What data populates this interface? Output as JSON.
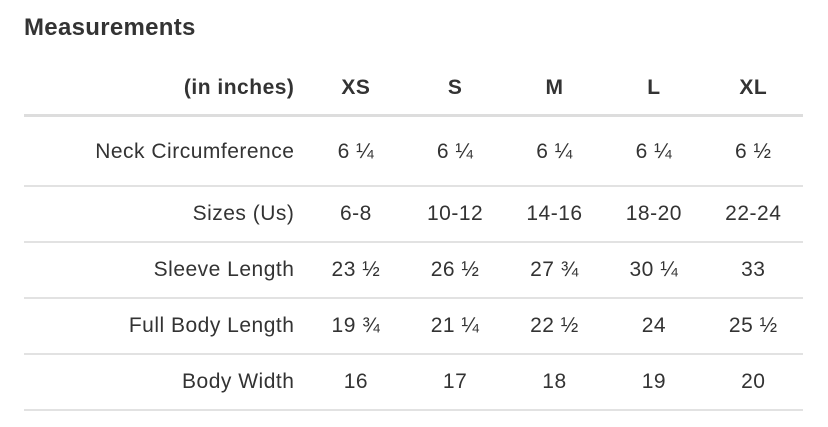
{
  "title": "Measurements",
  "table": {
    "unit_header": "(in inches)",
    "sizes": [
      "XS",
      "S",
      "M",
      "L",
      "XL"
    ],
    "rows": [
      {
        "label": "Neck Circumference",
        "values": [
          "6 ¼",
          "6 ¼",
          "6 ¼",
          "6 ¼",
          "6 ½"
        ]
      },
      {
        "label": "Sizes (Us)",
        "values": [
          "6-8",
          "10-12",
          "14-16",
          "18-20",
          "22-24"
        ]
      },
      {
        "label": "Sleeve Length",
        "values": [
          "23 ½",
          "26 ½",
          "27 ¾",
          "30 ¼",
          "33"
        ]
      },
      {
        "label": "Full Body Length",
        "values": [
          "19 ¾",
          "21 ¼",
          "22 ½",
          "24",
          "25 ½"
        ]
      },
      {
        "label": "Body Width",
        "values": [
          "16",
          "17",
          "18",
          "19",
          "20"
        ]
      }
    ]
  }
}
